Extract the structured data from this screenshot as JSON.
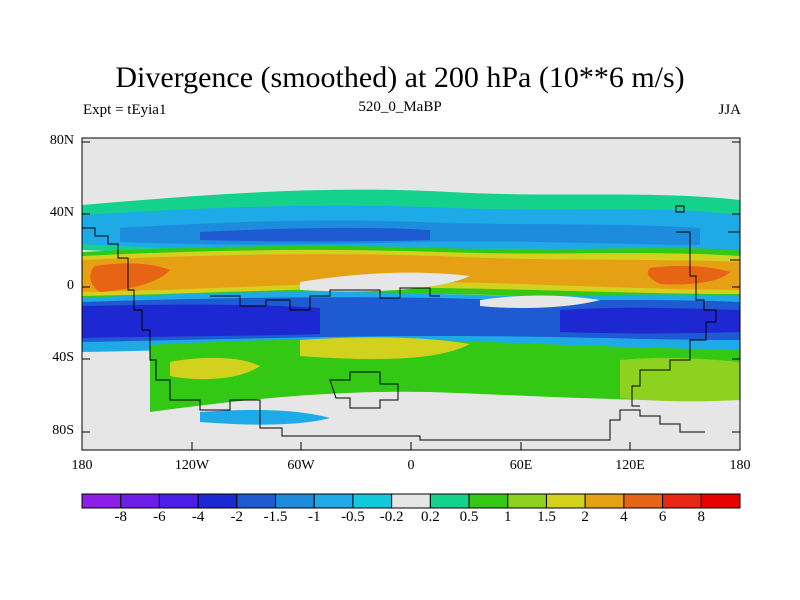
{
  "header": {
    "title": "Divergence (smoothed) at 200 hPa (10**6 m/s)",
    "left_label": "Expt = tEyia1",
    "center_label": "520_0_MaBP",
    "right_label": "JJA"
  },
  "map": {
    "lat_ticks": [
      "80N",
      "40N",
      "0",
      "40S",
      "80S"
    ],
    "lon_ticks": [
      "180",
      "120W",
      "60W",
      "0",
      "60E",
      "120E",
      "180"
    ],
    "background_color": "#e6e6e6"
  },
  "colorbar": {
    "labels": [
      "-8",
      "-6",
      "-4",
      "-2",
      "-1.5",
      "-1",
      "-0.5",
      "-0.2",
      "0.2",
      "0.5",
      "1",
      "1.5",
      "2",
      "4",
      "6",
      "8"
    ],
    "colors": [
      "#8c1ee6",
      "#6e1ee6",
      "#4b1ee6",
      "#1e28d2",
      "#1e5ad2",
      "#1e8cdc",
      "#1eaae6",
      "#14c8dc",
      "#e6e6e6",
      "#14d28c",
      "#32c814",
      "#8cd21e",
      "#d2d21e",
      "#e6a014",
      "#e66414",
      "#e62814",
      "#e60000"
    ]
  }
}
